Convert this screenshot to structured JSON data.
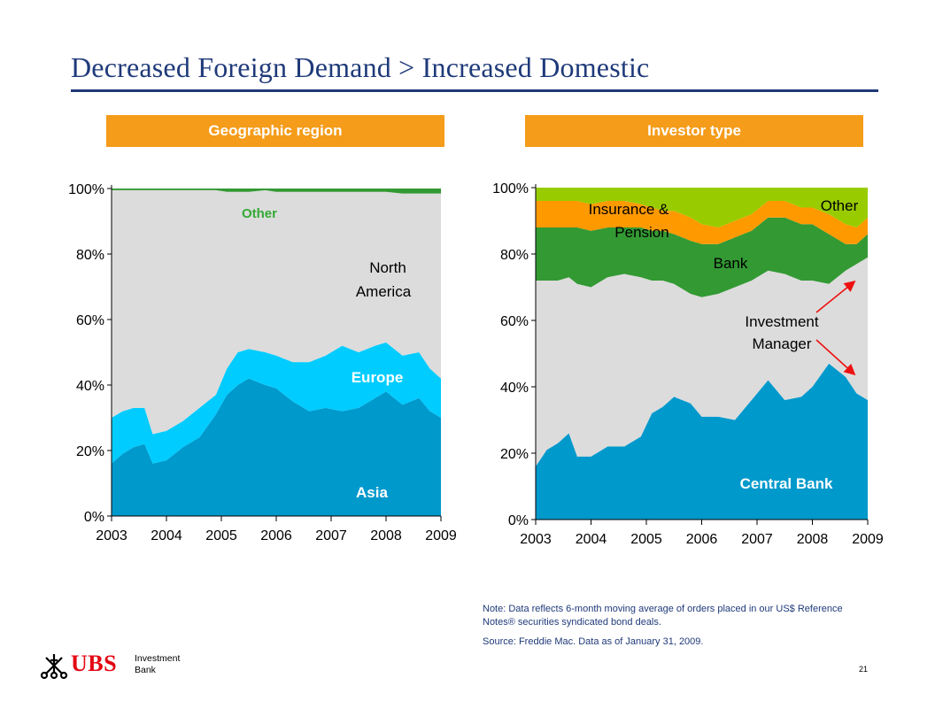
{
  "title": "Decreased Foreign Demand > Increased Domestic",
  "panels": {
    "left_header": "Geographic region",
    "right_header": "Investor type"
  },
  "chart_data": [
    {
      "type": "area",
      "stacked": true,
      "title": "Geographic region",
      "x_ticks": [
        "2003",
        "2004",
        "2005",
        "2006",
        "2007",
        "2008",
        "2009"
      ],
      "y_ticks": [
        "0%",
        "20%",
        "40%",
        "60%",
        "80%",
        "100%"
      ],
      "ylim": [
        0,
        100
      ],
      "x": [
        2003.0,
        2003.2,
        2003.4,
        2003.6,
        2003.75,
        2004.0,
        2004.3,
        2004.6,
        2004.9,
        2005.1,
        2005.3,
        2005.5,
        2005.8,
        2006.0,
        2006.3,
        2006.6,
        2006.9,
        2007.2,
        2007.5,
        2007.8,
        2008.0,
        2008.3,
        2008.6,
        2008.8,
        2009.0
      ],
      "series": [
        {
          "name": "Asia",
          "color": "#0099cc",
          "values": [
            16,
            19,
            21,
            22,
            16,
            17,
            21,
            24,
            31,
            37,
            40,
            42,
            40,
            39,
            35,
            32,
            33,
            32,
            33,
            36,
            38,
            34,
            36,
            32,
            30
          ]
        },
        {
          "name": "Europe",
          "color": "#00ccff",
          "values": [
            14,
            13,
            12,
            11,
            9,
            9,
            8,
            9,
            6,
            8,
            10,
            9,
            10,
            10,
            12,
            15,
            16,
            20,
            17,
            16,
            15,
            15,
            14,
            13,
            12
          ]
        },
        {
          "name": "North America",
          "color": "#dcdcdc",
          "values": [
            69.5,
            67.5,
            66.5,
            66.5,
            74.5,
            73.5,
            70.5,
            66.5,
            62.5,
            54.0,
            49.0,
            48.0,
            49.5,
            50.0,
            52.0,
            52.0,
            50.0,
            47.0,
            49.0,
            47.0,
            46.0,
            49.5,
            48.5,
            53.5,
            56.5
          ]
        },
        {
          "name": "Other",
          "color": "#339933",
          "values": [
            0.5,
            0.5,
            0.5,
            0.5,
            0.5,
            0.5,
            0.5,
            0.5,
            0.5,
            1.0,
            1.0,
            1.0,
            0.5,
            1.0,
            1.0,
            1.0,
            1.0,
            1.0,
            1.0,
            1.0,
            1.0,
            1.5,
            1.5,
            1.5,
            1.5
          ]
        }
      ],
      "labels": [
        {
          "text": "Other",
          "series": "Other",
          "color": "#33aa33"
        },
        {
          "text": "North",
          "series": "North America",
          "color": "#000000"
        },
        {
          "text": "America",
          "series": "North America",
          "color": "#000000"
        },
        {
          "text": "Europe",
          "series": "Europe",
          "color": "#ffffff"
        },
        {
          "text": "Asia",
          "series": "Asia",
          "color": "#ffffff"
        }
      ]
    },
    {
      "type": "area",
      "stacked": true,
      "title": "Investor type",
      "x_ticks": [
        "2003",
        "2004",
        "2005",
        "2006",
        "2007",
        "2008",
        "2009"
      ],
      "y_ticks": [
        "0%",
        "20%",
        "40%",
        "60%",
        "80%",
        "100%"
      ],
      "ylim": [
        0,
        100
      ],
      "x": [
        2003.0,
        2003.2,
        2003.4,
        2003.6,
        2003.75,
        2004.0,
        2004.3,
        2004.6,
        2004.9,
        2005.1,
        2005.3,
        2005.5,
        2005.8,
        2006.0,
        2006.3,
        2006.6,
        2006.9,
        2007.2,
        2007.5,
        2007.8,
        2008.0,
        2008.3,
        2008.6,
        2008.8,
        2009.0
      ],
      "series": [
        {
          "name": "Central Bank",
          "color": "#0099cc",
          "values": [
            16,
            21,
            23,
            26,
            19,
            19,
            22,
            22,
            25,
            32,
            34,
            37,
            35,
            31,
            31,
            30,
            36,
            42,
            36,
            37,
            40,
            47,
            43,
            38,
            36
          ]
        },
        {
          "name": "Investment Manager",
          "color": "#dcdcdc",
          "values": [
            56,
            51,
            49,
            47,
            52,
            51,
            51,
            52,
            48,
            40,
            38,
            34,
            33,
            36,
            37,
            40,
            36,
            33,
            38,
            35,
            32,
            24,
            32,
            39,
            43
          ]
        },
        {
          "name": "Bank",
          "color": "#339933",
          "values": [
            16,
            16,
            16,
            15,
            17,
            17,
            15,
            14,
            15,
            15,
            15,
            15,
            16,
            16,
            15,
            15,
            15,
            16,
            17,
            17,
            17,
            15,
            8,
            6,
            7
          ]
        },
        {
          "name": "Insurance & Pension",
          "color": "#ff9900",
          "values": [
            8,
            8,
            8,
            8,
            8,
            8,
            8,
            8,
            7,
            7,
            6,
            7,
            7,
            6,
            5,
            5,
            5,
            5,
            5,
            5,
            5,
            6,
            6,
            5,
            5
          ]
        },
        {
          "name": "Other",
          "color": "#99cc00",
          "values": [
            4,
            4,
            4,
            4,
            4,
            5,
            4,
            4,
            5,
            6,
            7,
            7,
            9,
            11,
            12,
            10,
            8,
            4,
            4,
            6,
            6,
            8,
            11,
            12,
            9
          ]
        }
      ],
      "labels": [
        {
          "text": "Insurance &",
          "series": "Insurance & Pension",
          "color": "#000000"
        },
        {
          "text": "Pension",
          "series": "Insurance & Pension",
          "color": "#000000"
        },
        {
          "text": "Other",
          "series": "Other",
          "color": "#000000"
        },
        {
          "text": "Bank",
          "series": "Bank",
          "color": "#000000"
        },
        {
          "text": "Investment",
          "series": "Investment Manager",
          "color": "#000000"
        },
        {
          "text": "Manager",
          "series": "Investment Manager",
          "color": "#000000"
        },
        {
          "text": "Central Bank",
          "series": "Central Bank",
          "color": "#ffffff"
        }
      ],
      "annotation_arrow_color": "#ee1111"
    }
  ],
  "notes": {
    "note": "Note: Data reflects 6-month moving average of orders placed in our US$ Reference Notes® securities syndicated bond deals.",
    "source": "Source: Freddie Mac.  Data as of January 31, 2009."
  },
  "logo": {
    "brand": "UBS",
    "line1": "Investment",
    "line2": "Bank",
    "brand_color": "#e30613",
    "icon": "ubs-keys-icon"
  },
  "page_number": "21"
}
